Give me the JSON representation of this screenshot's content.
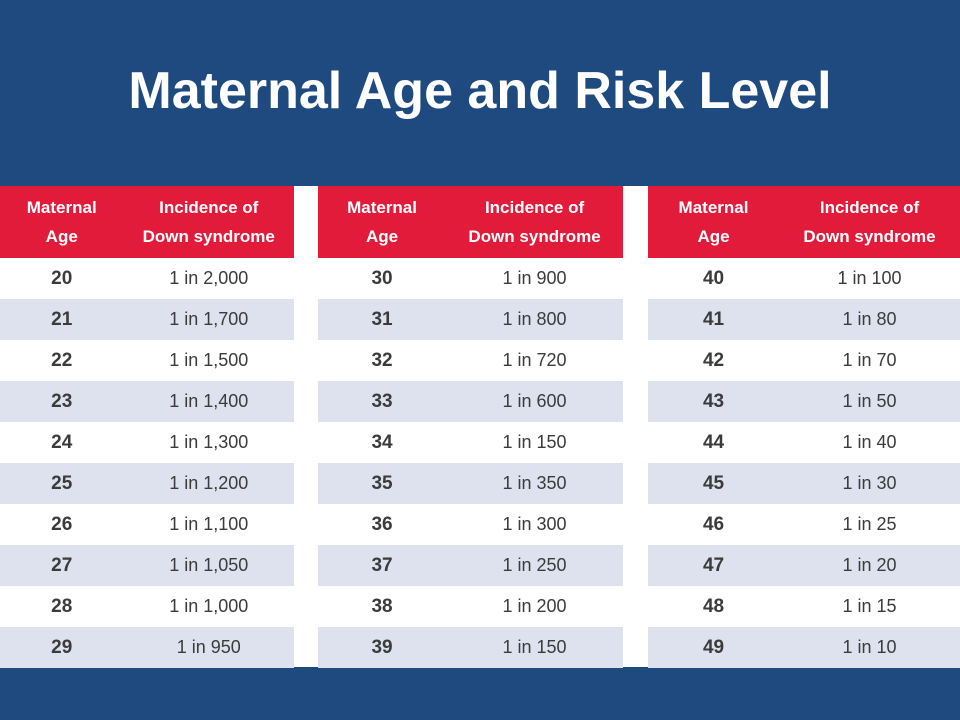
{
  "title": "Maternal Age and Risk Level",
  "colors": {
    "background": "#1f4a80",
    "header": "#e31b3a",
    "row_alt": "#dde2ee",
    "row": "#ffffff"
  },
  "tables": [
    {
      "headers": [
        "Maternal Age",
        "Incidence of Down syndrome"
      ],
      "rows": [
        {
          "age": "20",
          "incidence": "1 in 2,000"
        },
        {
          "age": "21",
          "incidence": "1 in 1,700"
        },
        {
          "age": "22",
          "incidence": "1 in 1,500"
        },
        {
          "age": "23",
          "incidence": "1 in 1,400"
        },
        {
          "age": "24",
          "incidence": "1 in 1,300"
        },
        {
          "age": "25",
          "incidence": "1 in 1,200"
        },
        {
          "age": "26",
          "incidence": "1 in 1,100"
        },
        {
          "age": "27",
          "incidence": "1 in 1,050"
        },
        {
          "age": "28",
          "incidence": "1 in 1,000"
        },
        {
          "age": "29",
          "incidence": "1 in 950"
        }
      ]
    },
    {
      "headers": [
        "Maternal Age",
        "Incidence of Down syndrome"
      ],
      "rows": [
        {
          "age": "30",
          "incidence": "1 in 900"
        },
        {
          "age": "31",
          "incidence": "1 in 800"
        },
        {
          "age": "32",
          "incidence": "1 in 720"
        },
        {
          "age": "33",
          "incidence": "1 in 600"
        },
        {
          "age": "34",
          "incidence": "1 in 150"
        },
        {
          "age": "35",
          "incidence": "1 in 350"
        },
        {
          "age": "36",
          "incidence": "1 in 300"
        },
        {
          "age": "37",
          "incidence": "1 in 250"
        },
        {
          "age": "38",
          "incidence": "1 in 200"
        },
        {
          "age": "39",
          "incidence": "1 in 150"
        }
      ]
    },
    {
      "headers": [
        "Maternal Age",
        "Incidence of Down syndrome"
      ],
      "rows": [
        {
          "age": "40",
          "incidence": "1 in 100"
        },
        {
          "age": "41",
          "incidence": "1 in 80"
        },
        {
          "age": "42",
          "incidence": "1 in 70"
        },
        {
          "age": "43",
          "incidence": "1 in 50"
        },
        {
          "age": "44",
          "incidence": "1 in 40"
        },
        {
          "age": "45",
          "incidence": "1 in 30"
        },
        {
          "age": "46",
          "incidence": "1 in 25"
        },
        {
          "age": "47",
          "incidence": "1 in 20"
        },
        {
          "age": "48",
          "incidence": "1 in 15"
        },
        {
          "age": "49",
          "incidence": "1 in 10"
        }
      ]
    }
  ]
}
